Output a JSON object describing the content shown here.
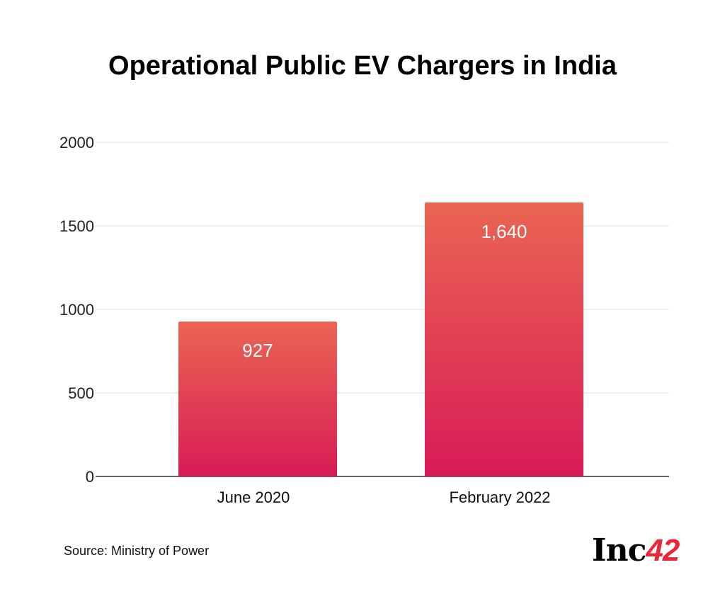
{
  "chart_data": {
    "type": "bar",
    "title": "Operational Public EV Chargers in India",
    "categories": [
      "June 2020",
      "February 2022"
    ],
    "values": [
      927,
      1640
    ],
    "data_labels": [
      "927",
      "1,640"
    ],
    "xlabel": "",
    "ylabel": "",
    "ylim": [
      0,
      2000
    ],
    "yticks": [
      0,
      500,
      1000,
      1500,
      2000
    ],
    "grid": true,
    "colors": {
      "bar_top": "#ea6552",
      "bar_bottom": "#d81b57"
    }
  },
  "source": "Source: Ministry of Power",
  "logo": {
    "text": "Inc",
    "number": "42"
  }
}
